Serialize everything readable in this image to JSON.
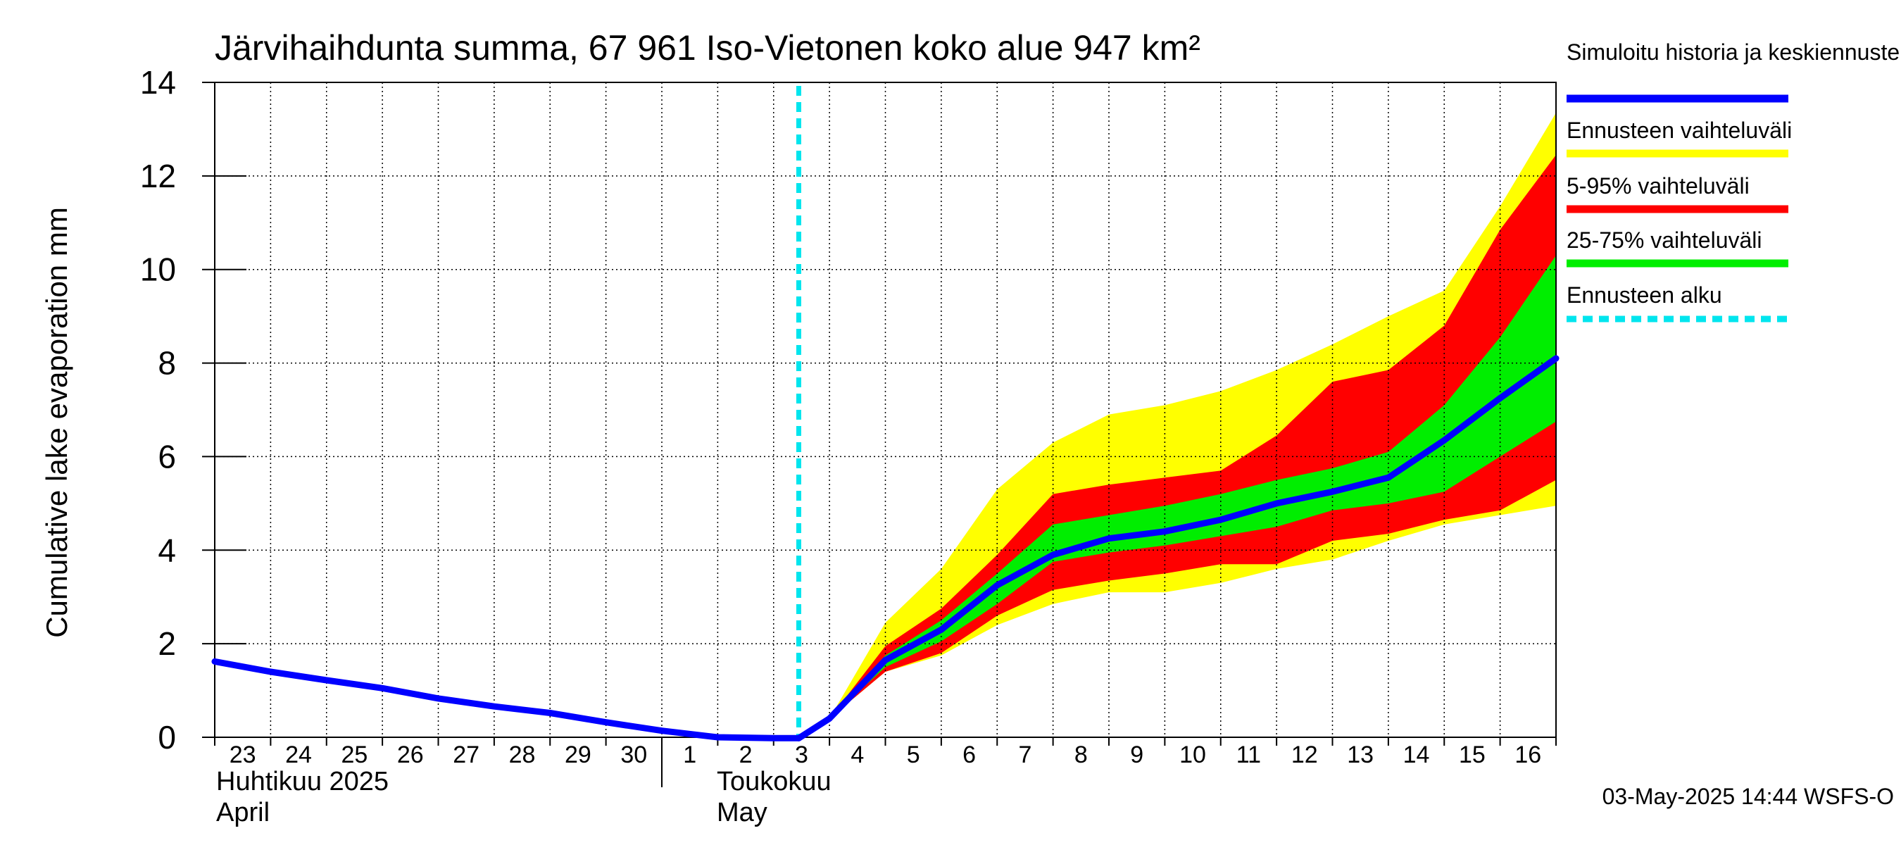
{
  "chart_data": {
    "type": "area",
    "title": "Järvihaihdunta summa, 67 961 Iso-Vietonen koko alue 947 km²",
    "ylabel": "Cumulative lake evaporation   mm",
    "xlabel": "",
    "ylim": [
      0,
      14
    ],
    "y_ticks": [
      "0",
      "2",
      "4",
      "6",
      "8",
      "10",
      "12",
      "14"
    ],
    "x_range_days": [
      0,
      24
    ],
    "day_labels": [
      "23",
      "24",
      "25",
      "26",
      "27",
      "28",
      "29",
      "30",
      "1",
      "2",
      "3",
      "4",
      "5",
      "6",
      "7",
      "8",
      "9",
      "10",
      "11",
      "12",
      "13",
      "14",
      "15",
      "16"
    ],
    "month_labels": {
      "april_fi": "Huhtikuu  2025",
      "april_en": "April",
      "may_fi": "Toukokuu",
      "may_en": "May"
    },
    "month_boundary_day": 8,
    "forecast_start_day": 10.45,
    "history": {
      "name": "Simuloitu historia ja keskiennuste",
      "x": [
        0,
        1,
        2,
        3,
        4,
        5,
        6,
        7,
        8,
        9,
        10,
        10.45
      ],
      "y": [
        1.62,
        1.4,
        1.22,
        1.05,
        0.83,
        0.66,
        0.52,
        0.32,
        0.14,
        0.0,
        -0.02,
        -0.02
      ]
    },
    "forecast_x": [
      10.45,
      11,
      12,
      13,
      14,
      15,
      16,
      17,
      18,
      19,
      20,
      21,
      22,
      23,
      24
    ],
    "median": [
      -0.02,
      0.4,
      1.65,
      2.3,
      3.25,
      3.9,
      4.25,
      4.4,
      4.65,
      5.0,
      5.25,
      5.55,
      6.35,
      7.25,
      8.1
    ],
    "min": [
      -0.02,
      0.4,
      1.4,
      1.75,
      2.4,
      2.85,
      3.1,
      3.1,
      3.3,
      3.6,
      3.8,
      4.2,
      4.55,
      4.75,
      4.95
    ],
    "p5": [
      -0.02,
      0.4,
      1.4,
      1.8,
      2.6,
      3.15,
      3.35,
      3.5,
      3.7,
      3.7,
      4.2,
      4.35,
      4.65,
      4.85,
      5.5
    ],
    "p25": [
      -0.02,
      0.4,
      1.5,
      2.05,
      2.85,
      3.75,
      3.95,
      4.1,
      4.3,
      4.5,
      4.85,
      5.0,
      5.25,
      6.0,
      6.75
    ],
    "p75": [
      -0.02,
      0.4,
      1.75,
      2.5,
      3.5,
      4.55,
      4.75,
      4.95,
      5.2,
      5.5,
      5.75,
      6.1,
      7.1,
      8.55,
      10.3
    ],
    "p95": [
      -0.02,
      0.4,
      1.95,
      2.75,
      3.9,
      5.2,
      5.4,
      5.55,
      5.7,
      6.45,
      7.6,
      7.85,
      8.8,
      10.85,
      12.45
    ],
    "max": [
      -0.02,
      0.4,
      2.45,
      3.6,
      5.3,
      6.3,
      6.9,
      7.1,
      7.4,
      7.85,
      8.4,
      9.0,
      9.55,
      11.35,
      13.35
    ],
    "legend": {
      "position": "right",
      "items": [
        {
          "label": "Simuloitu historia ja keskiennuste",
          "color": "#0000ff",
          "style": "line"
        },
        {
          "label": "Ennusteen vaihteluväli",
          "color": "#ffff00",
          "style": "band"
        },
        {
          "label": "5-95% vaihteluväli",
          "color": "#ff0000",
          "style": "band"
        },
        {
          "label": "25-75% vaihteluväli",
          "color": "#00ee00",
          "style": "band"
        },
        {
          "label": "Ennusteen alku",
          "color": "#00e5ee",
          "style": "dashed"
        }
      ]
    },
    "timestamp": "03-May-2025 14:44 WSFS-O",
    "colors": {
      "median": "#0000ff",
      "range": "#ffff00",
      "p5_95": "#ff0000",
      "p25_75": "#00ee00",
      "forecast_start": "#00e5ee",
      "grid": "#000000"
    }
  }
}
